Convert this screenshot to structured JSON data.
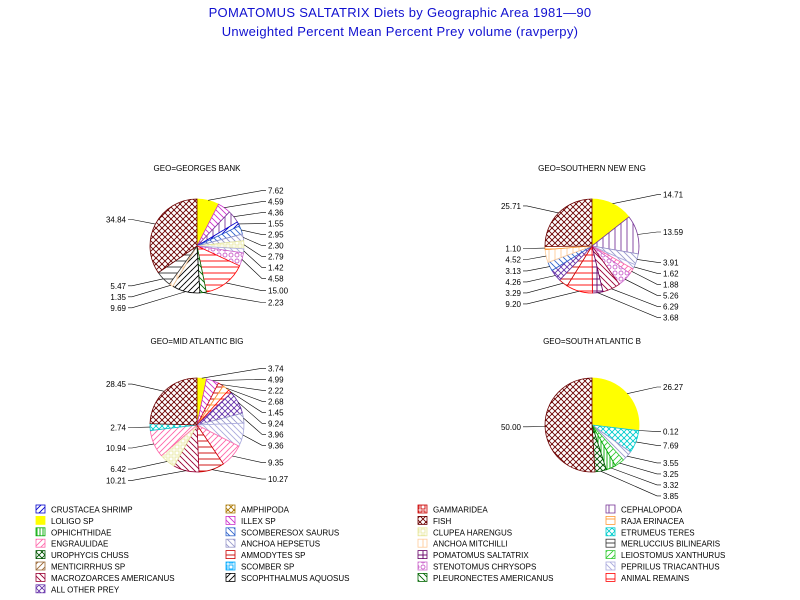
{
  "title": "POMATOMUS SALTATRIX Diets by Geographic Area 1981—90",
  "subtitle": "Unweighted Percent Mean Percent Prey  volume (ravperpy)",
  "colors": {
    "title": "#1010d0"
  },
  "legend": [
    {
      "name": "CRUSTACEA SHRIMP",
      "color": "#0000cc",
      "pattern": "diag-right"
    },
    {
      "name": "AMPHIPODA",
      "color": "#aa7700",
      "pattern": "cross-x"
    },
    {
      "name": "GAMMARIDEA",
      "color": "#cc0000",
      "pattern": "box"
    },
    {
      "name": "CEPHALOPODA",
      "color": "#7a3a9a",
      "pattern": "vert"
    },
    {
      "name": "LOLIGO SP",
      "color": "#ffff00",
      "pattern": "solid"
    },
    {
      "name": "ILLEX SP",
      "color": "#cc33cc",
      "pattern": "diag-left"
    },
    {
      "name": "FISH",
      "color": "#6b0000",
      "pattern": "cross-x"
    },
    {
      "name": "RAJA ERINACEA",
      "color": "#ff9933",
      "pattern": "horiz"
    },
    {
      "name": "OPHICHTHIDAE",
      "color": "#00aa00",
      "pattern": "vert-dense"
    },
    {
      "name": "SCOMBERESOX SAURUS",
      "color": "#3366cc",
      "pattern": "diag-left"
    },
    {
      "name": "CLUPEA HARENGUS",
      "color": "#e8e8a0",
      "pattern": "box"
    },
    {
      "name": "ETRUMEUS TERES",
      "color": "#00cccc",
      "pattern": "cross-x"
    },
    {
      "name": "ENGRAULIDAE",
      "color": "#ff66aa",
      "pattern": "diag-right"
    },
    {
      "name": "ANCHOA HEPSETUS",
      "color": "#9999cc",
      "pattern": "diag-left"
    },
    {
      "name": "ANCHOA MITCHILLI",
      "color": "#ffcc99",
      "pattern": "vert"
    },
    {
      "name": "MERLUCCIUS BILINEARIS",
      "color": "#333333",
      "pattern": "horiz"
    },
    {
      "name": "UROPHYCIS CHUSS",
      "color": "#005500",
      "pattern": "cross-x"
    },
    {
      "name": "AMMODYTES SP",
      "color": "#cc0000",
      "pattern": "horiz"
    },
    {
      "name": "POMATOMUS SALTATRIX",
      "color": "#660066",
      "pattern": "cross-plus"
    },
    {
      "name": "LEIOSTOMUS XANTHURUS",
      "color": "#33cc33",
      "pattern": "diag-right"
    },
    {
      "name": "MENTICIRRHUS SP",
      "color": "#996633",
      "pattern": "diag-right"
    },
    {
      "name": "SCOMBER SP",
      "color": "#00aaff",
      "pattern": "box"
    },
    {
      "name": "STENOTOMUS CHRYSOPS",
      "color": "#cc66cc",
      "pattern": "circle"
    },
    {
      "name": "PEPRILUS TRIACANTHUS",
      "color": "#aaaadd",
      "pattern": "diag-left"
    },
    {
      "name": "MACROZOARCES AMERICANUS",
      "color": "#990033",
      "pattern": "diag-left"
    },
    {
      "name": "SCOPHTHALMUS AQUOSUS",
      "color": "#000000",
      "pattern": "diag-right"
    },
    {
      "name": "PLEURONECTES AMERICANUS",
      "color": "#006600",
      "pattern": "diag-left"
    },
    {
      "name": "ANIMAL REMAINS",
      "color": "#ff0000",
      "pattern": "horiz"
    },
    {
      "name": "ALL OTHER PREY",
      "color": "#6633aa",
      "pattern": "cross-x"
    }
  ],
  "chart_data": [
    {
      "type": "pie",
      "title": "GEO=GEORGES BANK",
      "slices": [
        {
          "category": "LOLIGO SP",
          "value": 7.62
        },
        {
          "category": "ILLEX SP",
          "value": 4.59
        },
        {
          "category": "CEPHALOPODA",
          "value": 4.36
        },
        {
          "category": "CRUSTACEA SHRIMP",
          "value": 1.55
        },
        {
          "category": "SCOMBERESOX SAURUS",
          "value": 2.95
        },
        {
          "category": "ANCHOA HEPSETUS",
          "value": 2.3
        },
        {
          "category": "CLUPEA HARENGUS",
          "value": 2.79
        },
        {
          "category": "PEPRILUS TRIACANTHUS",
          "value": 1.42
        },
        {
          "category": "STENOTOMUS CHRYSOPS",
          "value": 4.58
        },
        {
          "category": "ANIMAL REMAINS",
          "value": 15.0
        },
        {
          "category": "PLEURONECTES AMERICANUS",
          "value": 2.23
        },
        {
          "category": "SCOPHTHALMUS AQUOSUS",
          "value": 9.69
        },
        {
          "category": "ANCHOA MITCHILLI",
          "value": 1.35
        },
        {
          "category": "MERLUCCIUS BILINEARIS",
          "value": 5.47
        },
        {
          "category": "FISH",
          "value": 34.84
        }
      ]
    },
    {
      "type": "pie",
      "title": "GEO=SOUTHERN NEW ENG",
      "slices": [
        {
          "category": "LOLIGO SP",
          "value": 14.71
        },
        {
          "category": "CEPHALOPODA",
          "value": 13.59
        },
        {
          "category": "ANCHOA HEPSETUS",
          "value": 3.91
        },
        {
          "category": "PEPRILUS TRIACANTHUS",
          "value": 1.62
        },
        {
          "category": "ENGRAULIDAE",
          "value": 1.88
        },
        {
          "category": "STENOTOMUS CHRYSOPS",
          "value": 5.26
        },
        {
          "category": "MACROZOARCES AMERICANUS",
          "value": 6.29
        },
        {
          "category": "POMATOMUS SALTATRIX",
          "value": 3.68
        },
        {
          "category": "ANIMAL REMAINS",
          "value": 9.2
        },
        {
          "category": "AMMODYTES SP",
          "value": 3.29
        },
        {
          "category": "ALL OTHER PREY",
          "value": 4.26
        },
        {
          "category": "SCOMBERESOX SAURUS",
          "value": 3.13
        },
        {
          "category": "ANCHOA MITCHILLI",
          "value": 4.52
        },
        {
          "category": "RAJA ERINACEA",
          "value": 1.1
        },
        {
          "category": "FISH",
          "value": 25.71
        }
      ]
    },
    {
      "type": "pie",
      "title": "GEO=MID ATLANTIC BIG",
      "slices": [
        {
          "category": "LOLIGO SP",
          "value": 3.74
        },
        {
          "category": "ILLEX SP",
          "value": 4.99
        },
        {
          "category": "AMMODYTES SP",
          "value": 2.22
        },
        {
          "category": "RAJA ERINACEA",
          "value": 2.68
        },
        {
          "category": "ANIMAL REMAINS",
          "value": 1.45
        },
        {
          "category": "ALL OTHER PREY",
          "value": 9.24
        },
        {
          "category": "ANCHOA HEPSETUS",
          "value": 3.96
        },
        {
          "category": "PEPRILUS TRIACANTHUS",
          "value": 9.36
        },
        {
          "category": "ENGRAULIDAE",
          "value": 9.35
        },
        {
          "category": "AMMODYTES SP",
          "value": 10.27
        },
        {
          "category": "MACROZOARCES AMERICANUS",
          "value": 10.21
        },
        {
          "category": "CLUPEA HARENGUS",
          "value": 6.42
        },
        {
          "category": "ENGRAULIDAE",
          "value": 10.94
        },
        {
          "category": "ETRUMEUS TERES",
          "value": 2.74
        },
        {
          "category": "FISH",
          "value": 28.45
        }
      ]
    },
    {
      "type": "pie",
      "title": "GEO=SOUTH ATLANTIC B",
      "slices": [
        {
          "category": "LOLIGO SP",
          "value": 26.27
        },
        {
          "category": "ANCHOA MITCHILLI",
          "value": 0.12
        },
        {
          "category": "ETRUMEUS TERES",
          "value": 7.69
        },
        {
          "category": "ANCHOA HEPSETUS",
          "value": 3.55
        },
        {
          "category": "LEIOSTOMUS XANTHURUS",
          "value": 3.25
        },
        {
          "category": "OPHICHTHIDAE",
          "value": 3.32
        },
        {
          "category": "UROPHYCIS CHUSS",
          "value": 3.85
        },
        {
          "category": "FISH",
          "value": 50.0
        }
      ]
    }
  ]
}
